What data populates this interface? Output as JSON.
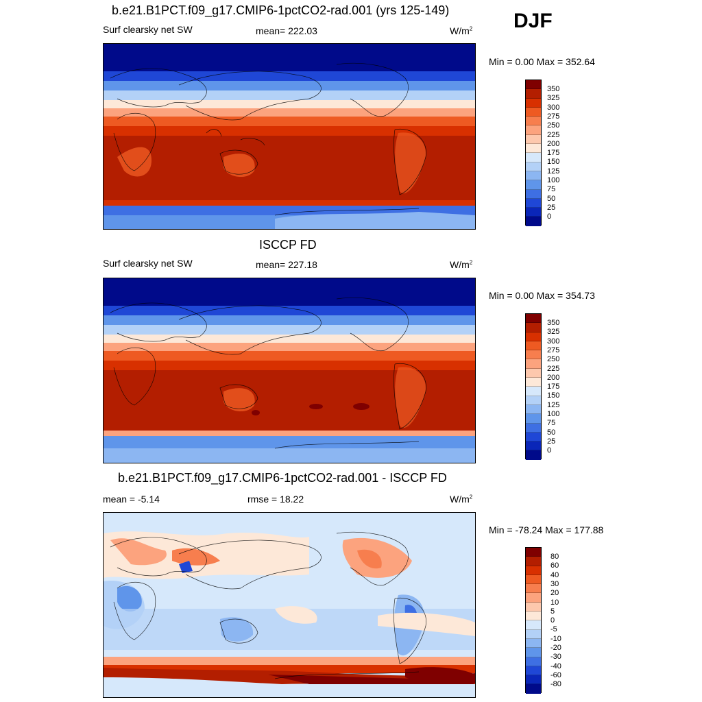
{
  "season": "DJF",
  "panels": [
    {
      "title": "b.e21.B1PCT.f09_g17.CMIP6-1pctCO2-rad.001 (yrs 125-149)",
      "left_label": "Surf clearsky net SW",
      "center_label": "mean= 222.03",
      "unit": "W/m",
      "unit_sup": "2",
      "minmax": "Min =   0.00 Max = 352.64",
      "colorbar_labels": [
        "350",
        "325",
        "300",
        "275",
        "250",
        "225",
        "200",
        "175",
        "150",
        "125",
        "100",
        "75",
        "50",
        "25",
        "0"
      ]
    },
    {
      "title": "ISCCP FD",
      "left_label": "Surf clearsky net SW",
      "center_label": "mean= 227.18",
      "unit": "W/m",
      "unit_sup": "2",
      "minmax": "Min =   0.00 Max = 354.73",
      "colorbar_labels": [
        "350",
        "325",
        "300",
        "275",
        "250",
        "225",
        "200",
        "175",
        "150",
        "125",
        "100",
        "75",
        "50",
        "25",
        "0"
      ]
    },
    {
      "title": "b.e21.B1PCT.f09_g17.CMIP6-1pctCO2-rad.001 - ISCCP FD",
      "left_label": "mean =  -5.14",
      "center_label": "rmse =  18.22",
      "unit": "W/m",
      "unit_sup": "2",
      "minmax": "Min = -78.24 Max = 177.88",
      "colorbar_labels": [
        "80",
        "60",
        "40",
        "30",
        "20",
        "10",
        "5",
        "0",
        "-5",
        "-10",
        "-20",
        "-30",
        "-40",
        "-60",
        "-80"
      ]
    }
  ],
  "colors": {
    "abs_scale": [
      "#7f0000",
      "#b31e00",
      "#d83000",
      "#ee5a22",
      "#f77e4e",
      "#fca37e",
      "#fdc8ad",
      "#fde8d8",
      "#d6e8fb",
      "#b3d1f7",
      "#8cb6f2",
      "#5f95ea",
      "#3e6fe3",
      "#1f47d6",
      "#0a26b8",
      "#000a8a"
    ],
    "diff_scale": [
      "#7f0000",
      "#b31e00",
      "#d83000",
      "#ee5a22",
      "#f77e4e",
      "#fca37e",
      "#fdc8ad",
      "#fde8d8",
      "#d6e8fb",
      "#b3d1f7",
      "#8cb6f2",
      "#5f95ea",
      "#3e6fe3",
      "#1f47d6",
      "#0a26b8",
      "#000a8a"
    ]
  }
}
